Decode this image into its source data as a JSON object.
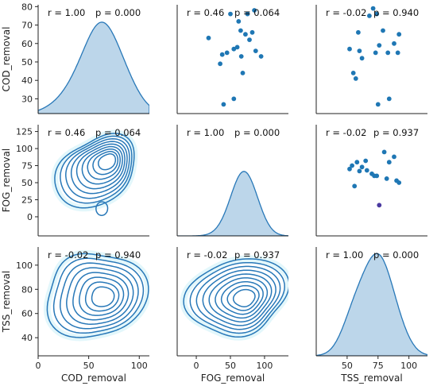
{
  "colors": {
    "accent": "#1f77b4",
    "kde_fill": "#bcd6ea",
    "kde_line": "#2878b8",
    "contour_glow": "#e3f7fb",
    "point_highlight": "#4a3aa0"
  },
  "chart_data": {
    "type": "pairplot",
    "variables": [
      "COD_removal",
      "FOG_removal",
      "TSS_removal"
    ],
    "axes": {
      "COD_removal": {
        "label": "COD_removal",
        "lim": [
          0,
          110
        ],
        "ylim": [
          22,
          81
        ],
        "xticks": [
          0,
          50,
          100
        ],
        "yticks": [
          30,
          40,
          50,
          60,
          70,
          80
        ]
      },
      "FOG_removal": {
        "label": "FOG_removal",
        "lim": [
          -28,
          135
        ],
        "xticks": [
          0,
          50,
          100
        ],
        "yticks": [
          0,
          25,
          50,
          75,
          100,
          125
        ]
      },
      "TSS_removal": {
        "label": "TSS_removal",
        "lim": [
          25,
          115
        ],
        "xticks": [
          50,
          75,
          100
        ],
        "yticks": [
          40,
          60,
          80,
          100
        ]
      }
    },
    "annotations": [
      {
        "row": 0,
        "col": 0,
        "r": "r = 1.00",
        "p": "p = 0.000"
      },
      {
        "row": 0,
        "col": 1,
        "r": "r = 0.46",
        "p": "p = 0.064"
      },
      {
        "row": 0,
        "col": 2,
        "r": "r = -0.02",
        "p": "p = 0.940"
      },
      {
        "row": 1,
        "col": 0,
        "r": "r = 0.46",
        "p": "p = 0.064"
      },
      {
        "row": 1,
        "col": 1,
        "r": "r = 1.00",
        "p": "p = 0.000"
      },
      {
        "row": 1,
        "col": 2,
        "r": "r = -0.02",
        "p": "p = 0.937"
      },
      {
        "row": 2,
        "col": 0,
        "r": "r = -0.02",
        "p": "p = 0.940"
      },
      {
        "row": 2,
        "col": 1,
        "r": "r = -0.02",
        "p": "p = 0.937"
      },
      {
        "row": 2,
        "col": 2,
        "r": "r = 1.00",
        "p": "p = 0.000"
      }
    ],
    "scatter_COD_vs_FOG": [
      [
        18,
        63
      ],
      [
        35,
        49
      ],
      [
        38,
        54
      ],
      [
        40,
        27
      ],
      [
        45,
        55
      ],
      [
        50,
        76
      ],
      [
        55,
        30
      ],
      [
        55,
        57
      ],
      [
        60,
        58
      ],
      [
        62,
        72
      ],
      [
        65,
        67
      ],
      [
        66,
        53
      ],
      [
        68,
        44
      ],
      [
        72,
        65
      ],
      [
        75,
        76
      ],
      [
        78,
        62
      ],
      [
        82,
        66
      ],
      [
        85,
        78
      ],
      [
        87,
        56
      ],
      [
        95,
        53
      ]
    ],
    "scatter_COD_vs_TSS": [
      [
        52,
        57
      ],
      [
        55,
        44
      ],
      [
        57,
        41
      ],
      [
        59,
        66
      ],
      [
        60,
        56
      ],
      [
        62,
        52
      ],
      [
        68,
        75
      ],
      [
        71,
        79
      ],
      [
        73,
        55
      ],
      [
        74,
        76
      ],
      [
        75,
        27
      ],
      [
        76,
        59
      ],
      [
        79,
        67
      ],
      [
        83,
        55
      ],
      [
        84,
        30
      ],
      [
        88,
        60
      ],
      [
        91,
        55
      ],
      [
        92,
        65
      ]
    ],
    "scatter_FOG_vs_TSS": [
      [
        52,
        70
      ],
      [
        54,
        75
      ],
      [
        56,
        45
      ],
      [
        58,
        80
      ],
      [
        60,
        67
      ],
      [
        62,
        73
      ],
      [
        65,
        82
      ],
      [
        66,
        68
      ],
      [
        70,
        63
      ],
      [
        72,
        60
      ],
      [
        74,
        60
      ],
      [
        76,
        17
      ],
      [
        80,
        95
      ],
      [
        82,
        56
      ],
      [
        84,
        80
      ],
      [
        88,
        88
      ],
      [
        90,
        53
      ],
      [
        92,
        50
      ]
    ],
    "kde_peaks": {
      "COD_removal": 60,
      "FOG_removal": 70,
      "TSS_removal": 75
    }
  }
}
